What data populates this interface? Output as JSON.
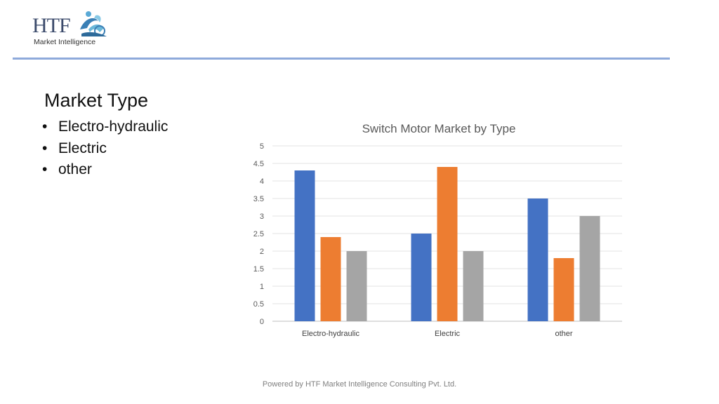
{
  "logo": {
    "letters": "HTF",
    "tagline": "Market Intelligence"
  },
  "slide": {
    "heading": "Market Type",
    "bullet_char": "•",
    "bullets": [
      "Electro-hydraulic",
      "Electric",
      "other"
    ]
  },
  "chart_data": {
    "type": "bar",
    "title": "Switch Motor Market by Type",
    "categories": [
      "Electro-hydraulic",
      "Electric",
      "other"
    ],
    "series": [
      {
        "values": [
          4.3,
          2.5,
          3.5
        ],
        "color": "#4472c4"
      },
      {
        "values": [
          2.4,
          4.4,
          1.8
        ],
        "color": "#ed7d31"
      },
      {
        "values": [
          2.0,
          2.0,
          3.0
        ],
        "color": "#a5a5a5"
      }
    ],
    "ylim": [
      0,
      5
    ],
    "yticks": [
      "0",
      "0.5",
      "1",
      "1.5",
      "2",
      "2.5",
      "3",
      "3.5",
      "4",
      "4.5",
      "5"
    ],
    "grid": true,
    "legend": "none"
  },
  "footer": {
    "text": "Powered by HTF Market Intelligence Consulting Pvt. Ltd."
  }
}
